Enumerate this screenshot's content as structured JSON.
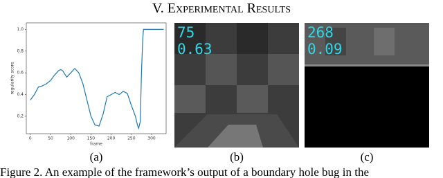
{
  "heading": "V. Experimental Results",
  "chart_data": {
    "type": "line",
    "ylabel": "regularity score",
    "xlabel": "frame",
    "x": [
      0,
      10,
      20,
      30,
      40,
      50,
      60,
      70,
      75,
      80,
      90,
      100,
      110,
      120,
      130,
      140,
      150,
      160,
      170,
      180,
      190,
      200,
      210,
      220,
      230,
      240,
      250,
      260,
      265,
      268,
      272,
      275,
      278,
      280,
      290,
      310,
      330
    ],
    "values": [
      0.35,
      0.4,
      0.47,
      0.48,
      0.5,
      0.53,
      0.58,
      0.62,
      0.63,
      0.62,
      0.56,
      0.6,
      0.64,
      0.6,
      0.5,
      0.35,
      0.2,
      0.12,
      0.11,
      0.22,
      0.38,
      0.4,
      0.42,
      0.4,
      0.43,
      0.41,
      0.3,
      0.2,
      0.12,
      0.09,
      0.15,
      0.6,
      0.9,
      1.0,
      1.0,
      1.0,
      1.0
    ],
    "color": "#1f77b4",
    "xlim": [
      -10,
      336
    ],
    "ylim": [
      0.04,
      1.06
    ],
    "xticks": [
      0,
      50,
      100,
      150,
      200,
      250,
      300
    ],
    "yticks": [
      0.2,
      0.4,
      0.6,
      0.8,
      {
        "value": 1,
        "label": "1.0"
      }
    ]
  },
  "overlays": [
    {
      "frame": 75,
      "score": 0.63
    },
    {
      "frame": 268,
      "score": 0.09
    }
  ],
  "sublabels": [
    "(a)",
    "(b)",
    "(c)"
  ],
  "caption": "Figure 2. An example of the framework’s output of a boundary hole bug in the"
}
